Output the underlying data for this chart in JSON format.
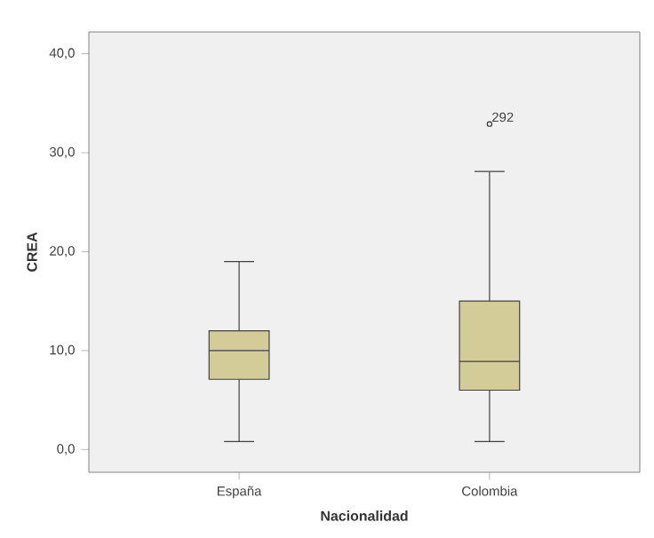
{
  "chart_data": {
    "type": "box",
    "xlabel": "Nacionalidad",
    "ylabel": "CREA",
    "categories": [
      "España",
      "Colombia"
    ],
    "boxes": [
      {
        "low": 0.8,
        "q1": 7.1,
        "median": 10.0,
        "q3": 12.0,
        "high": 19.0
      },
      {
        "low": 0.8,
        "q1": 6.0,
        "median": 8.9,
        "q3": 15.0,
        "high": 28.1,
        "outliers": [
          32.9
        ]
      }
    ],
    "color": "#d3cc98",
    "ylim": [
      -2.3,
      42.2
    ],
    "yticks": [
      {
        "value": 0,
        "label": "0,0"
      },
      {
        "value": 10,
        "label": "10,0"
      },
      {
        "value": 20,
        "label": "20,0"
      },
      {
        "value": 30,
        "label": "30,0"
      },
      {
        "value": 40,
        "label": "40,0"
      }
    ],
    "annotations": [
      "292"
    ]
  }
}
